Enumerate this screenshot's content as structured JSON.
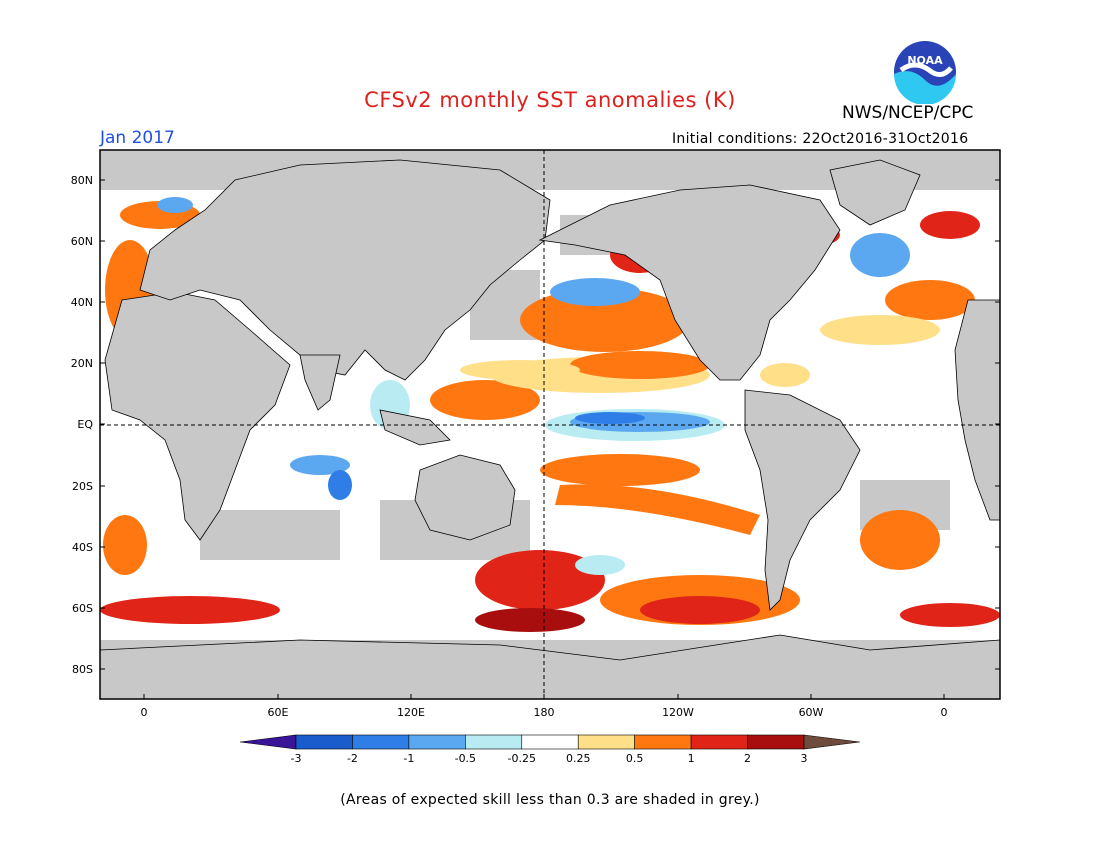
{
  "title": "CFSv2 monthly SST anomalies (K)",
  "org": "NWS/NCEP/CPC",
  "valid_month": "Jan 2017",
  "initial_conditions": "Initial conditions: 22Oct2016-31Oct2016",
  "note": "(Areas of expected skill less than 0.3 are shaded in grey.)",
  "logo_text": "NOAA",
  "lat_labels": [
    "80N",
    "60N",
    "40N",
    "20N",
    "EQ",
    "20S",
    "40S",
    "60S",
    "80S"
  ],
  "lon_labels": [
    "0",
    "60E",
    "120E",
    "180",
    "120W",
    "60W",
    "0"
  ],
  "colorbar": {
    "labels": [
      "-3",
      "-2",
      "-1",
      "-0.5",
      "-0.25",
      "0.25",
      "0.5",
      "1",
      "2",
      "3"
    ],
    "colors": [
      "#3a1499",
      "#1a5ccc",
      "#2f7ee8",
      "#5ca8f0",
      "#b8ecf2",
      "#ffffff",
      "#ffdf88",
      "#ff7711",
      "#e02418",
      "#a80e0e",
      "#6e4b3c"
    ]
  },
  "colors": {
    "land": "#c8c8c8",
    "title": "#e0201c",
    "valid": "#1f4fe0"
  }
}
